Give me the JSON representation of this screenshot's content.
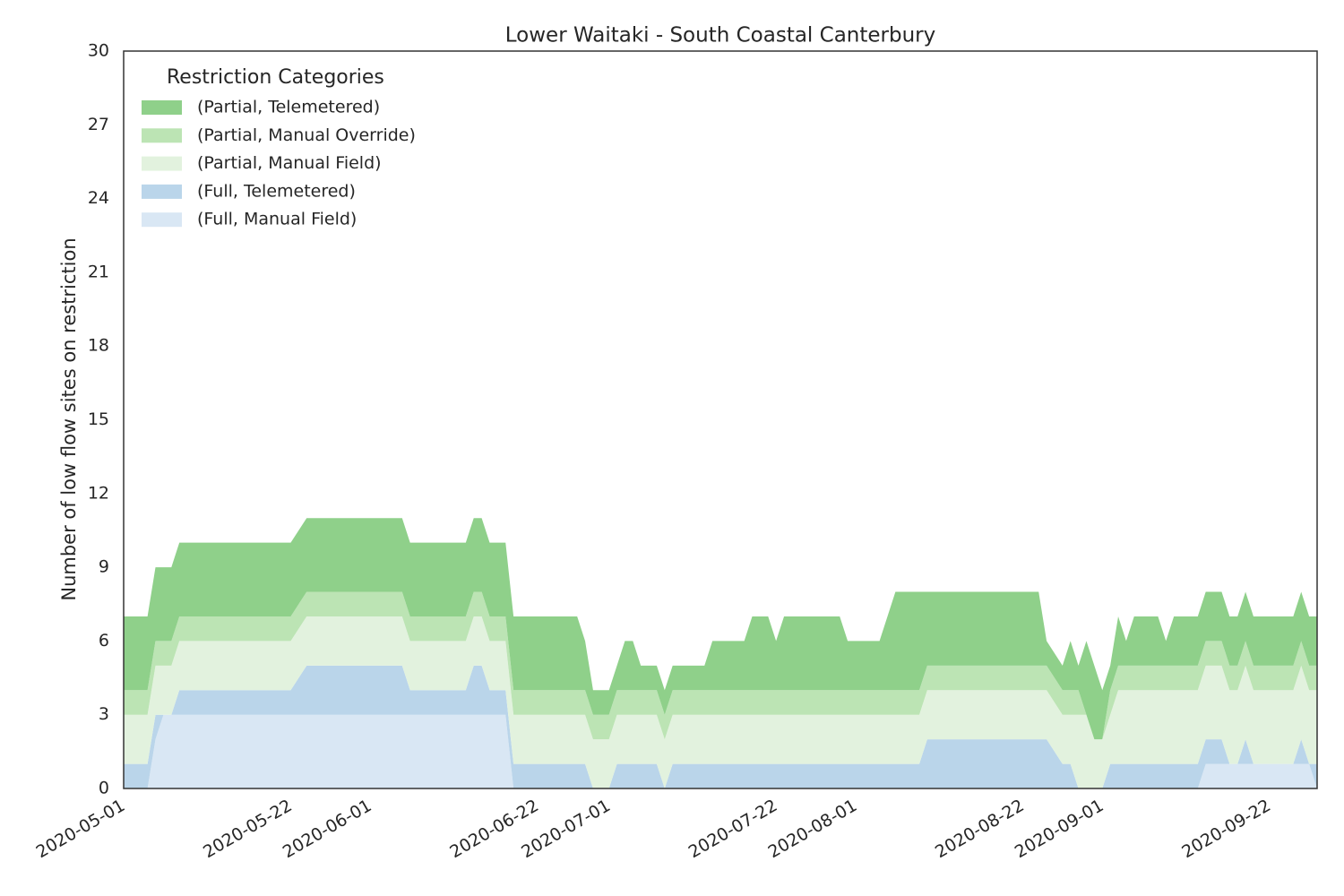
{
  "chart_data": {
    "type": "stacked_area",
    "title": "Lower Waitaki - South Coastal Canterbury",
    "ylabel": "Number of low flow sites on restriction",
    "legend_title": "Restriction Categories",
    "legend": "upper left",
    "x": [
      "2020-05-01",
      "2020-05-04",
      "2020-05-05",
      "2020-05-06",
      "2020-05-07",
      "2020-05-08",
      "2020-05-22",
      "2020-05-24",
      "2020-06-05",
      "2020-06-06",
      "2020-06-13",
      "2020-06-14",
      "2020-06-15",
      "2020-06-16",
      "2020-06-18",
      "2020-06-19",
      "2020-06-27",
      "2020-06-28",
      "2020-06-29",
      "2020-07-01",
      "2020-07-02",
      "2020-07-03",
      "2020-07-04",
      "2020-07-05",
      "2020-07-07",
      "2020-07-08",
      "2020-07-09",
      "2020-07-13",
      "2020-07-14",
      "2020-07-18",
      "2020-07-19",
      "2020-07-21",
      "2020-07-22",
      "2020-07-23",
      "2020-07-30",
      "2020-07-31",
      "2020-08-04",
      "2020-08-05",
      "2020-08-06",
      "2020-08-09",
      "2020-08-10",
      "2020-08-24",
      "2020-08-25",
      "2020-08-27",
      "2020-08-28",
      "2020-08-29",
      "2020-08-30",
      "2020-08-31",
      "2020-09-01",
      "2020-09-02",
      "2020-09-03",
      "2020-09-04",
      "2020-09-05",
      "2020-09-08",
      "2020-09-09",
      "2020-09-10",
      "2020-09-13",
      "2020-09-14",
      "2020-09-16",
      "2020-09-17",
      "2020-09-18",
      "2020-09-19",
      "2020-09-20",
      "2020-09-25",
      "2020-09-26",
      "2020-09-27",
      "2020-09-28"
    ],
    "series": [
      {
        "name": "(Full, Manual Field)",
        "color": "#d9e7f4",
        "values": [
          0,
          0,
          2,
          3,
          3,
          3,
          3,
          3,
          3,
          3,
          3,
          3,
          3,
          3,
          3,
          0,
          0,
          0,
          0,
          0,
          0,
          0,
          0,
          0,
          0,
          0,
          0,
          0,
          0,
          0,
          0,
          0,
          0,
          0,
          0,
          0,
          0,
          0,
          0,
          0,
          0,
          0,
          0,
          0,
          0,
          0,
          0,
          0,
          0,
          0,
          0,
          0,
          0,
          0,
          0,
          0,
          0,
          1,
          1,
          1,
          1,
          1,
          1,
          1,
          1,
          1,
          0
        ]
      },
      {
        "name": "(Full, Telemetered)",
        "color": "#bad5ea",
        "values": [
          1,
          1,
          1,
          0,
          0,
          1,
          1,
          2,
          2,
          1,
          1,
          2,
          2,
          1,
          1,
          1,
          1,
          1,
          0,
          0,
          1,
          1,
          1,
          1,
          1,
          0,
          1,
          1,
          1,
          1,
          1,
          1,
          1,
          1,
          1,
          1,
          1,
          1,
          1,
          1,
          2,
          2,
          2,
          1,
          1,
          0,
          0,
          0,
          0,
          1,
          1,
          1,
          1,
          1,
          1,
          1,
          1,
          1,
          1,
          0,
          0,
          1,
          0,
          0,
          1,
          0,
          1
        ]
      },
      {
        "name": "(Partial, Manual Field)",
        "color": "#e2f2de",
        "values": [
          2,
          2,
          2,
          2,
          2,
          2,
          2,
          2,
          2,
          2,
          2,
          2,
          2,
          2,
          2,
          2,
          2,
          2,
          2,
          2,
          2,
          2,
          2,
          2,
          2,
          2,
          2,
          2,
          2,
          2,
          2,
          2,
          2,
          2,
          2,
          2,
          2,
          2,
          2,
          2,
          2,
          2,
          2,
          2,
          2,
          3,
          3,
          2,
          2,
          2,
          3,
          3,
          3,
          3,
          3,
          3,
          3,
          3,
          3,
          3,
          3,
          3,
          3,
          3,
          3,
          3,
          3
        ]
      },
      {
        "name": "(Partial, Manual Override)",
        "color": "#bce4b4",
        "values": [
          1,
          1,
          1,
          1,
          1,
          1,
          1,
          1,
          1,
          1,
          1,
          1,
          1,
          1,
          1,
          1,
          1,
          1,
          1,
          1,
          1,
          1,
          1,
          1,
          1,
          1,
          1,
          1,
          1,
          1,
          1,
          1,
          1,
          1,
          1,
          1,
          1,
          1,
          1,
          1,
          1,
          1,
          1,
          1,
          1,
          1,
          0,
          0,
          0,
          1,
          1,
          1,
          1,
          1,
          1,
          1,
          1,
          1,
          1,
          1,
          1,
          1,
          1,
          1,
          1,
          1,
          1
        ]
      },
      {
        "name": "(Partial, Telemetered)",
        "color": "#8fd08a",
        "values": [
          3,
          3,
          3,
          3,
          3,
          3,
          3,
          3,
          3,
          3,
          3,
          3,
          3,
          3,
          3,
          3,
          3,
          2,
          1,
          1,
          1,
          2,
          2,
          1,
          1,
          1,
          1,
          1,
          2,
          2,
          3,
          3,
          2,
          3,
          3,
          2,
          2,
          3,
          4,
          4,
          3,
          3,
          1,
          1,
          2,
          1,
          3,
          3,
          2,
          1,
          2,
          1,
          2,
          2,
          1,
          2,
          2,
          2,
          2,
          2,
          2,
          2,
          2,
          2,
          2,
          2,
          2
        ]
      }
    ],
    "xlim": [
      "2020-05-01",
      "2020-09-28"
    ],
    "xticks": [
      "2020-05-01",
      "2020-05-22",
      "2020-06-01",
      "2020-06-22",
      "2020-07-01",
      "2020-07-22",
      "2020-08-01",
      "2020-08-22",
      "2020-09-01",
      "2020-09-22"
    ],
    "ylim": [
      0,
      30
    ],
    "yticks": [
      0,
      3,
      6,
      9,
      12,
      15,
      18,
      21,
      24,
      27,
      30
    ],
    "grid": false
  }
}
